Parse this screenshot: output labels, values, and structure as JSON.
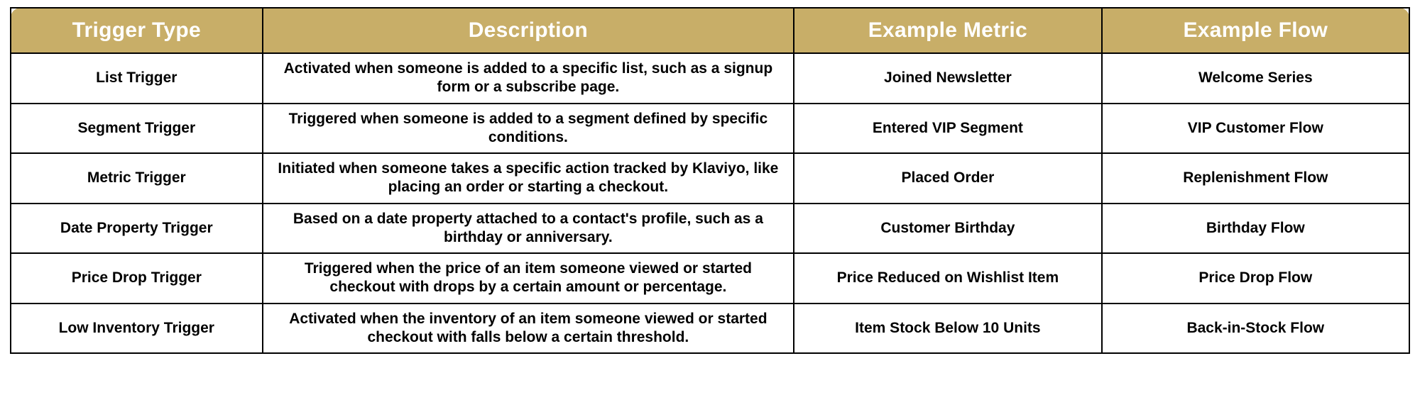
{
  "table": {
    "header_bg": "#c8ae68",
    "header_fg": "#ffffff",
    "border_color": "#000000",
    "columns": [
      {
        "key": "type",
        "label": "Trigger Type",
        "width_pct": 18
      },
      {
        "key": "desc",
        "label": "Description",
        "width_pct": 38
      },
      {
        "key": "metric",
        "label": "Example Metric",
        "width_pct": 22
      },
      {
        "key": "flow",
        "label": "Example Flow",
        "width_pct": 22
      }
    ],
    "rows": [
      {
        "type": "List Trigger",
        "desc": "Activated when someone is added to a specific list, such as a signup form or a subscribe page.",
        "metric": "Joined Newsletter",
        "flow": "Welcome Series"
      },
      {
        "type": "Segment Trigger",
        "desc": "Triggered when someone is added to a segment defined by specific conditions.",
        "metric": "Entered VIP Segment",
        "flow": "VIP Customer Flow"
      },
      {
        "type": "Metric Trigger",
        "desc": "Initiated when someone takes a specific action tracked by Klaviyo, like placing an order or starting a checkout.",
        "metric": "Placed Order",
        "flow": "Replenishment Flow"
      },
      {
        "type": "Date Property Trigger",
        "desc": "Based on a date property attached to a contact's profile, such as a birthday or anniversary.",
        "metric": "Customer Birthday",
        "flow": "Birthday Flow"
      },
      {
        "type": "Price Drop Trigger",
        "desc": "Triggered when the price of an item someone viewed or started checkout with drops by a certain amount or percentage.",
        "metric": "Price Reduced on Wishlist Item",
        "flow": "Price Drop Flow"
      },
      {
        "type": "Low Inventory Trigger",
        "desc": "Activated when the inventory of an item someone viewed or started checkout with falls below a certain threshold.",
        "metric": "Item Stock Below 10 Units",
        "flow": "Back-in-Stock Flow"
      }
    ]
  }
}
